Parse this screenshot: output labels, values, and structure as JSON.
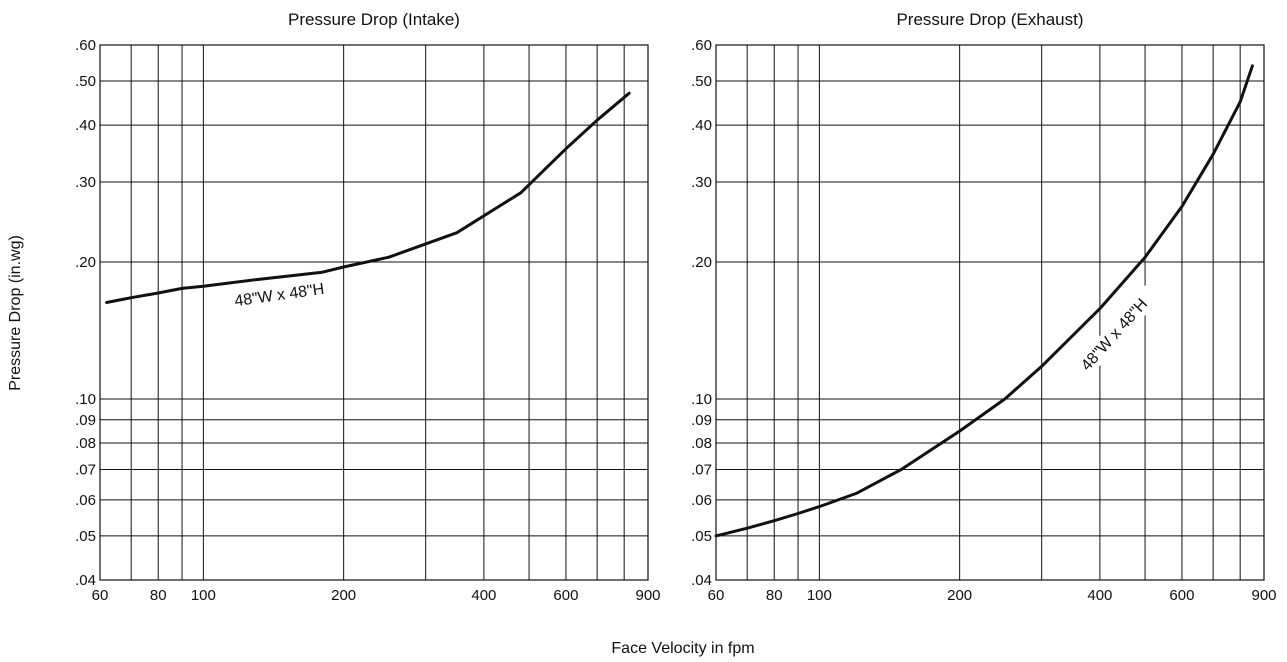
{
  "figure": {
    "ylabel": "Pressure Drop (in.wg)",
    "xlabel": "Face Velocity in fpm"
  },
  "chart_data": [
    {
      "type": "line",
      "title": "Pressure Drop (Intake)",
      "x_scale": "log",
      "y_scale": "log",
      "xlim": [
        60,
        900
      ],
      "ylim": [
        0.04,
        0.6
      ],
      "x_gridlines": [
        70,
        80,
        90,
        100,
        200,
        300,
        400,
        500,
        600,
        700,
        800
      ],
      "y_gridlines": [
        0.05,
        0.06,
        0.07,
        0.08,
        0.09,
        0.1,
        0.2,
        0.3,
        0.4,
        0.5,
        0.6
      ],
      "x_tick_labels": [
        "60",
        "80",
        "100",
        "200",
        "400",
        "600",
        "900"
      ],
      "y_tick_labels": [
        ".60",
        ".50",
        ".40",
        ".30",
        ".20",
        ".10",
        ".09",
        ".08",
        ".07",
        ".06",
        ".05",
        ".04"
      ],
      "series": [
        {
          "name": "48\"W x 48\"H",
          "x": [
            62,
            70,
            80,
            90,
            100,
            130,
            180,
            200,
            250,
            350,
            480,
            600,
            700,
            820
          ],
          "y": [
            0.163,
            0.167,
            0.171,
            0.175,
            0.177,
            0.183,
            0.19,
            0.195,
            0.205,
            0.232,
            0.284,
            0.355,
            0.41,
            0.47
          ]
        }
      ]
    },
    {
      "type": "line",
      "title": "Pressure Drop (Exhaust)",
      "x_scale": "log",
      "y_scale": "log",
      "xlim": [
        60,
        900
      ],
      "ylim": [
        0.04,
        0.6
      ],
      "x_gridlines": [
        70,
        80,
        90,
        100,
        200,
        300,
        400,
        500,
        600,
        700,
        800
      ],
      "y_gridlines": [
        0.05,
        0.06,
        0.07,
        0.08,
        0.09,
        0.1,
        0.2,
        0.3,
        0.4,
        0.5,
        0.6
      ],
      "x_tick_labels": [
        "60",
        "80",
        "100",
        "200",
        "400",
        "600",
        "900"
      ],
      "y_tick_labels": [
        ".60",
        ".50",
        ".40",
        ".30",
        ".20",
        ".10",
        ".09",
        ".08",
        ".07",
        ".06",
        ".05",
        ".04"
      ],
      "series": [
        {
          "name": "48\"W x 48\"H",
          "x": [
            60,
            70,
            80,
            90,
            100,
            120,
            150,
            200,
            250,
            300,
            400,
            500,
            600,
            700,
            800,
            850
          ],
          "y": [
            0.05,
            0.052,
            0.054,
            0.056,
            0.058,
            0.062,
            0.07,
            0.085,
            0.1,
            0.118,
            0.158,
            0.205,
            0.265,
            0.345,
            0.45,
            0.54
          ]
        }
      ]
    }
  ]
}
